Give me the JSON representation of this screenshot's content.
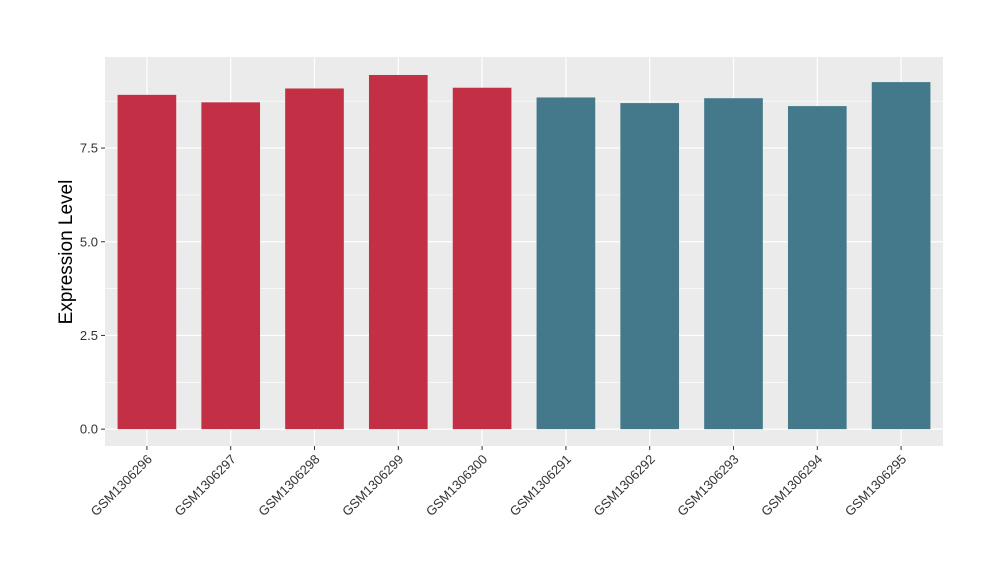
{
  "chart_data": {
    "type": "bar",
    "title": "",
    "xlabel": "",
    "ylabel": "Expression Level",
    "categories": [
      "GSM1306296",
      "GSM1306297",
      "GSM1306298",
      "GSM1306299",
      "GSM1306300",
      "GSM1306291",
      "GSM1306292",
      "GSM1306293",
      "GSM1306294",
      "GSM1306295"
    ],
    "values": [
      8.92,
      8.72,
      9.09,
      9.45,
      9.11,
      8.85,
      8.7,
      8.83,
      8.62,
      9.26
    ],
    "bar_colors": [
      "#c33046",
      "#c33046",
      "#c33046",
      "#c33046",
      "#c33046",
      "#43798a",
      "#43798a",
      "#43798a",
      "#43798a",
      "#43798a"
    ],
    "yticks": [
      0,
      2.5,
      5,
      7.5
    ],
    "ytick_labels": [
      "0.0",
      "2.5",
      "5.0",
      "7.5"
    ],
    "ylim": [
      -0.45,
      9.93
    ],
    "grid": true,
    "legend": "none",
    "panel_color": "#ebebeb",
    "gridline_color": "#ffffff"
  }
}
